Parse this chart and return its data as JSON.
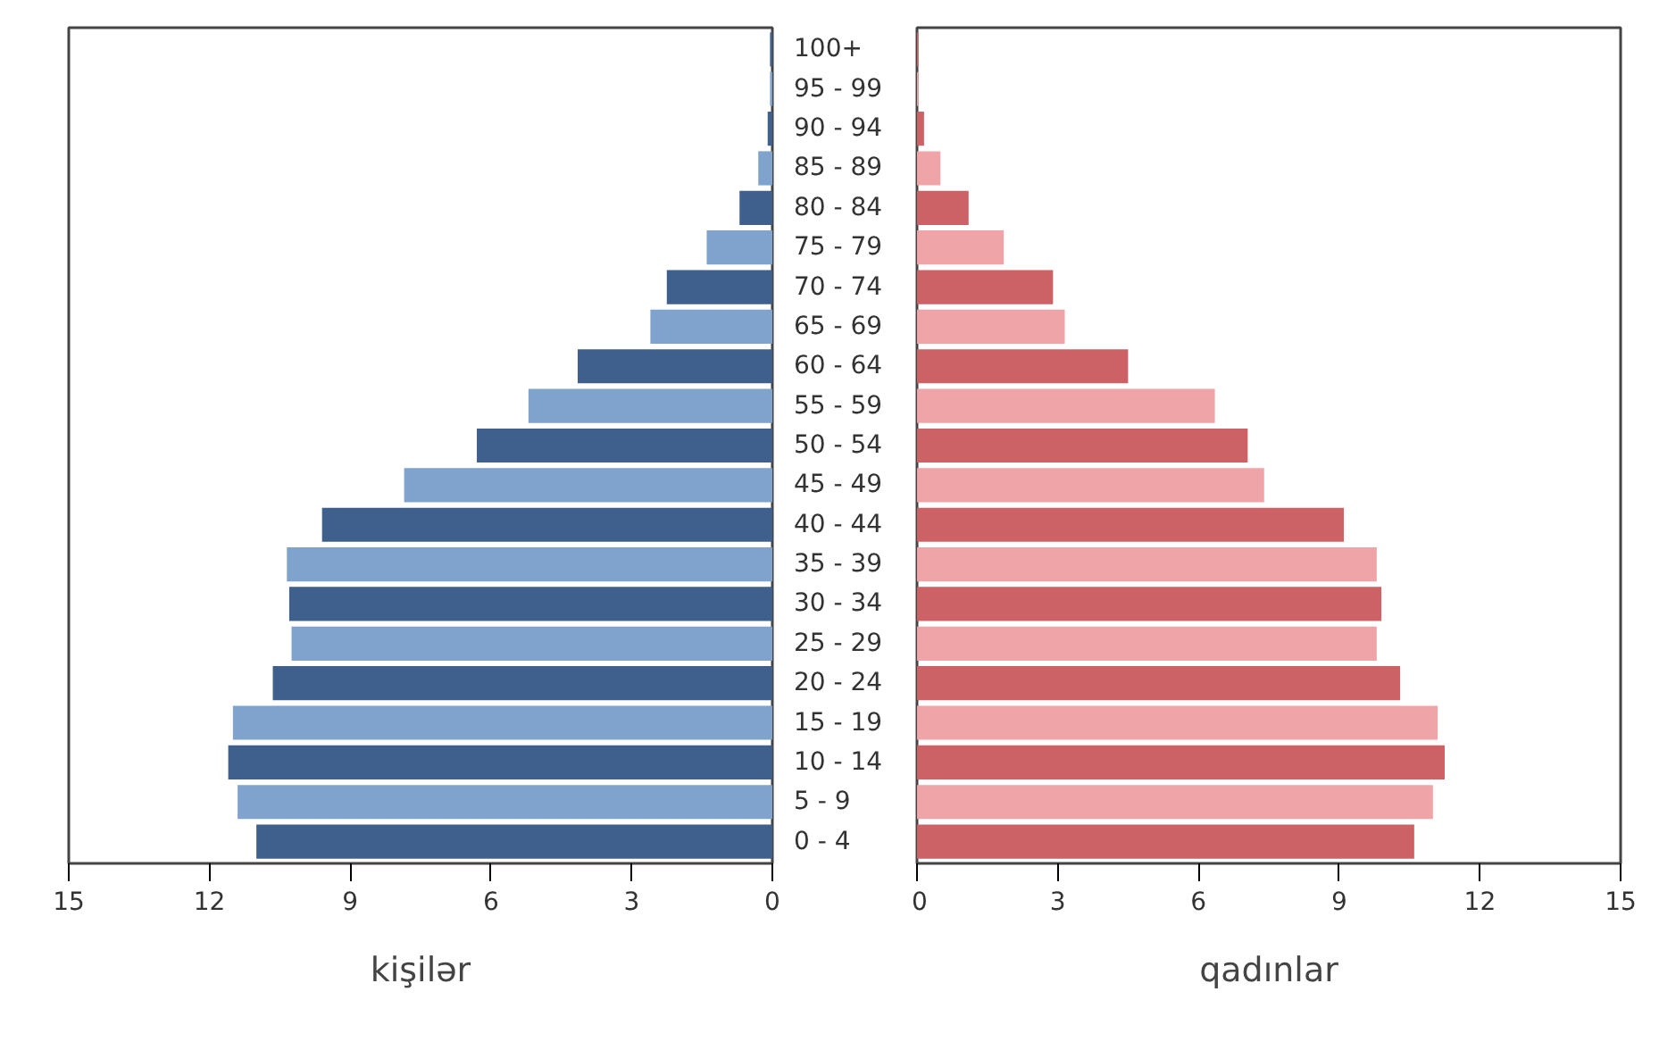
{
  "chart_data": [
    {
      "type": "bar",
      "orientation": "horizontal",
      "xlabel": "kişilər",
      "categories": [
        "100+",
        "95 - 99",
        "90 - 94",
        "85 - 89",
        "80 - 84",
        "75 - 79",
        "70 - 74",
        "65 - 69",
        "60 - 64",
        "55 - 59",
        "50 - 54",
        "45 - 49",
        "40 - 44",
        "35 - 39",
        "30 - 34",
        "25 - 29",
        "20 - 24",
        "15 - 19",
        "10 - 14",
        "5 - 9",
        "0 - 4"
      ],
      "values": [
        0.05,
        0.05,
        0.1,
        0.3,
        0.7,
        1.4,
        2.25,
        2.6,
        4.15,
        5.2,
        6.3,
        7.85,
        9.6,
        10.35,
        10.3,
        10.25,
        10.65,
        11.5,
        11.6,
        11.4,
        11.0
      ],
      "colors": [
        "#3f5f8c",
        "#7fa3cc",
        "#3f5f8c",
        "#7fa3cc",
        "#3f5f8c",
        "#7fa3cc",
        "#3f5f8c",
        "#7fa3cc",
        "#3f5f8c",
        "#7fa3cc",
        "#3f5f8c",
        "#7fa3cc",
        "#3f5f8c",
        "#7fa3cc",
        "#3f5f8c",
        "#7fa3cc",
        "#3f5f8c",
        "#7fa3cc",
        "#3f5f8c",
        "#7fa3cc",
        "#3f5f8c"
      ],
      "xlim": [
        15,
        0
      ],
      "xticks": [
        15,
        12,
        9,
        6,
        3,
        0
      ],
      "grid": false
    },
    {
      "type": "bar",
      "orientation": "horizontal",
      "xlabel": "qadınlar",
      "tick_labels": "x",
      "categories": [
        null,
        null,
        null,
        null,
        null,
        null,
        null,
        null,
        null,
        null,
        null,
        null,
        null,
        null,
        null,
        null,
        null,
        null,
        null,
        null,
        null
      ],
      "values": [
        0.03,
        0.03,
        0.15,
        0.5,
        1.1,
        1.85,
        2.9,
        3.15,
        4.5,
        6.35,
        7.05,
        7.4,
        9.1,
        9.8,
        9.9,
        9.8,
        10.3,
        11.1,
        11.25,
        11.0,
        10.6
      ],
      "colors": [
        "#cc6266",
        "#efa4a7",
        "#cc6266",
        "#efa4a7",
        "#cc6266",
        "#efa4a7",
        "#cc6266",
        "#efa4a7",
        "#cc6266",
        "#efa4a7",
        "#cc6266",
        "#efa4a7",
        "#cc6266",
        "#efa4a7",
        "#cc6266",
        "#efa4a7",
        "#cc6266",
        "#efa4a7",
        "#cc6266",
        "#efa4a7",
        "#cc6266"
      ],
      "xlim": [
        0,
        15
      ],
      "xticks": [
        0,
        3,
        6,
        9,
        12,
        15
      ],
      "grid": false
    }
  ]
}
